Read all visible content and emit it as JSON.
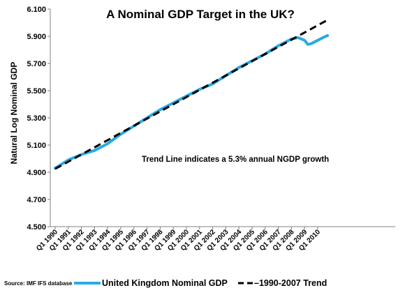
{
  "chart_data": {
    "type": "line",
    "title": "A Nominal GDP Target in the UK?",
    "xlabel": "",
    "ylabel": "Natural Log Nominal GDP",
    "ylim": [
      4.5,
      6.1
    ],
    "yticks": [
      "4.500",
      "4.700",
      "4.900",
      "5.100",
      "5.300",
      "5.500",
      "5.700",
      "5.900",
      "6.100"
    ],
    "ytick_values": [
      4.5,
      4.7,
      4.9,
      5.1,
      5.3,
      5.5,
      5.7,
      5.9,
      6.1
    ],
    "xticks": [
      "Q1 1990",
      "Q1 1991",
      "Q1 1992",
      "Q1 1993",
      "Q1 1994",
      "Q1 1995",
      "Q1 1996",
      "Q1 1997",
      "Q1 1998",
      "Q1 1999",
      "Q1 2000",
      "Q1 2001",
      "Q1 2002",
      "Q1 2003",
      "Q1 2004",
      "Q1 2005",
      "Q1 2006",
      "Q1 2007",
      "Q1 2008",
      "Q1 2009",
      "Q1 2010"
    ],
    "x": [
      "Q1 1990",
      "Q1 1991",
      "Q1 1992",
      "Q1 1993",
      "Q1 1994",
      "Q1 1995",
      "Q1 1996",
      "Q1 1997",
      "Q1 1998",
      "Q1 1999",
      "Q1 2000",
      "Q1 2001",
      "Q1 2002",
      "Q1 2003",
      "Q1 2004",
      "Q1 2005",
      "Q1 2006",
      "Q1 2007",
      "Q1 2008",
      "Q3 2008",
      "Q1 2009",
      "Q2 2009",
      "Q3 2009",
      "Q1 2010",
      "Q3 2010",
      "Q4 2010"
    ],
    "series": [
      {
        "name": "United Kingdom Nominal GDP",
        "color": "#29abe2",
        "style": "solid",
        "values": [
          4.93,
          4.99,
          5.03,
          5.06,
          5.11,
          5.18,
          5.24,
          5.3,
          5.36,
          5.41,
          5.46,
          5.51,
          5.55,
          5.61,
          5.67,
          5.72,
          5.77,
          5.83,
          5.88,
          5.89,
          5.87,
          5.84,
          5.845,
          5.87,
          5.895,
          5.905
        ]
      },
      {
        "name": "1990-2007 Trend",
        "color": "#000000",
        "style": "dashed",
        "x_endpoints": [
          "Q1 1990",
          "Q4 2010"
        ],
        "values_endpoints": [
          4.925,
          6.02
        ]
      }
    ],
    "annotation": "Trend Line indicates a 5.3% annual NGDP growth",
    "legend": {
      "placement": "bottom",
      "entries": [
        "United Kingdom Nominal GDP",
        "1990-2007 Trend"
      ]
    },
    "grid": false
  },
  "source": "Source: IMF IFS database"
}
